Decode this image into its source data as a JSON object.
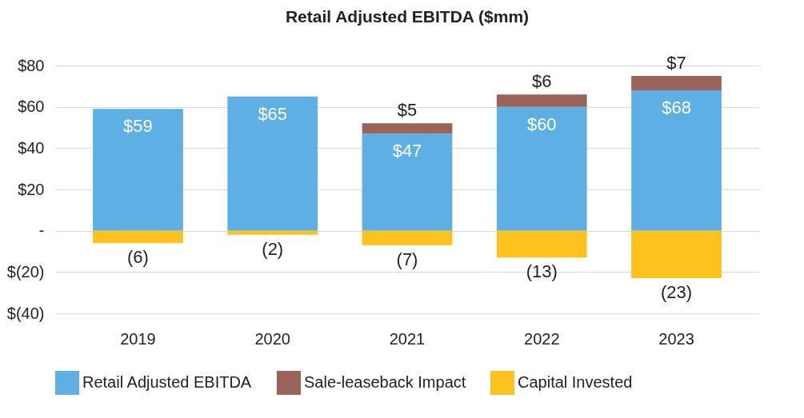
{
  "chart_data": {
    "type": "bar",
    "title": "Retail Adjusted EBITDA ($mm)",
    "stacked": true,
    "categories": [
      "2019",
      "2020",
      "2021",
      "2022",
      "2023"
    ],
    "series": [
      {
        "name": "Retail Adjusted EBITDA",
        "color": "#5eb0e4",
        "values": [
          59,
          65,
          47,
          60,
          68
        ],
        "value_labels": [
          "$59",
          "$65",
          "$47",
          "$60",
          "$68"
        ]
      },
      {
        "name": "Sale-leaseback Impact",
        "color": "#9a645a",
        "values": [
          null,
          null,
          5,
          6,
          7
        ],
        "value_labels": [
          null,
          null,
          "$5",
          "$6",
          "$7"
        ]
      },
      {
        "name": "Capital Invested",
        "color": "#fdc21d",
        "values": [
          -6,
          -2,
          -7,
          -13,
          -23
        ],
        "value_labels": [
          "(6)",
          "(2)",
          "(7)",
          "(13)",
          "(23)"
        ]
      }
    ],
    "ylim": [
      -40,
      80
    ],
    "yticks": [
      {
        "value": -40,
        "label": "$(40)"
      },
      {
        "value": -20,
        "label": "$(20)"
      },
      {
        "value": 0,
        "label": "-"
      },
      {
        "value": 20,
        "label": "$20"
      },
      {
        "value": 40,
        "label": "$40"
      },
      {
        "value": 60,
        "label": "$60"
      },
      {
        "value": 80,
        "label": "$80"
      }
    ],
    "grid": "y",
    "legend": "bottom"
  }
}
